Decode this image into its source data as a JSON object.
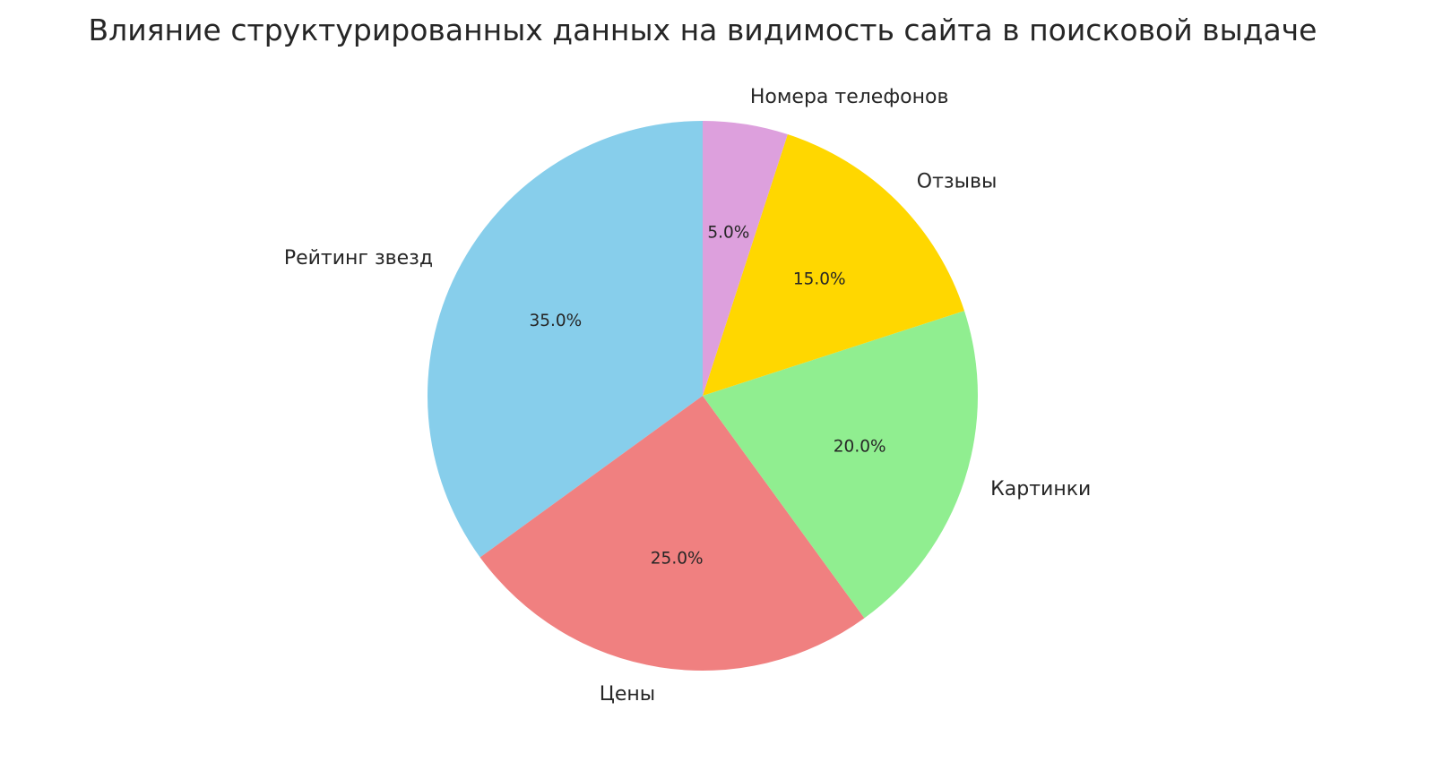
{
  "chart_data": {
    "type": "pie",
    "title": "Влияние структурированных данных на видимость сайта в поисковой выдаче",
    "categories": [
      "Рейтинг звезд",
      "Цены",
      "Картинки",
      "Отзывы",
      "Номера телефонов"
    ],
    "values": [
      35,
      25,
      20,
      15,
      5
    ],
    "percent_labels": [
      "35.0%",
      "25.0%",
      "20.0%",
      "15.0%",
      "5.0%"
    ],
    "colors": [
      "#87CEEB",
      "#F08080",
      "#90EE90",
      "#FFD700",
      "#DDA0DD"
    ],
    "start_angle": 90,
    "direction": "counterclockwise"
  }
}
